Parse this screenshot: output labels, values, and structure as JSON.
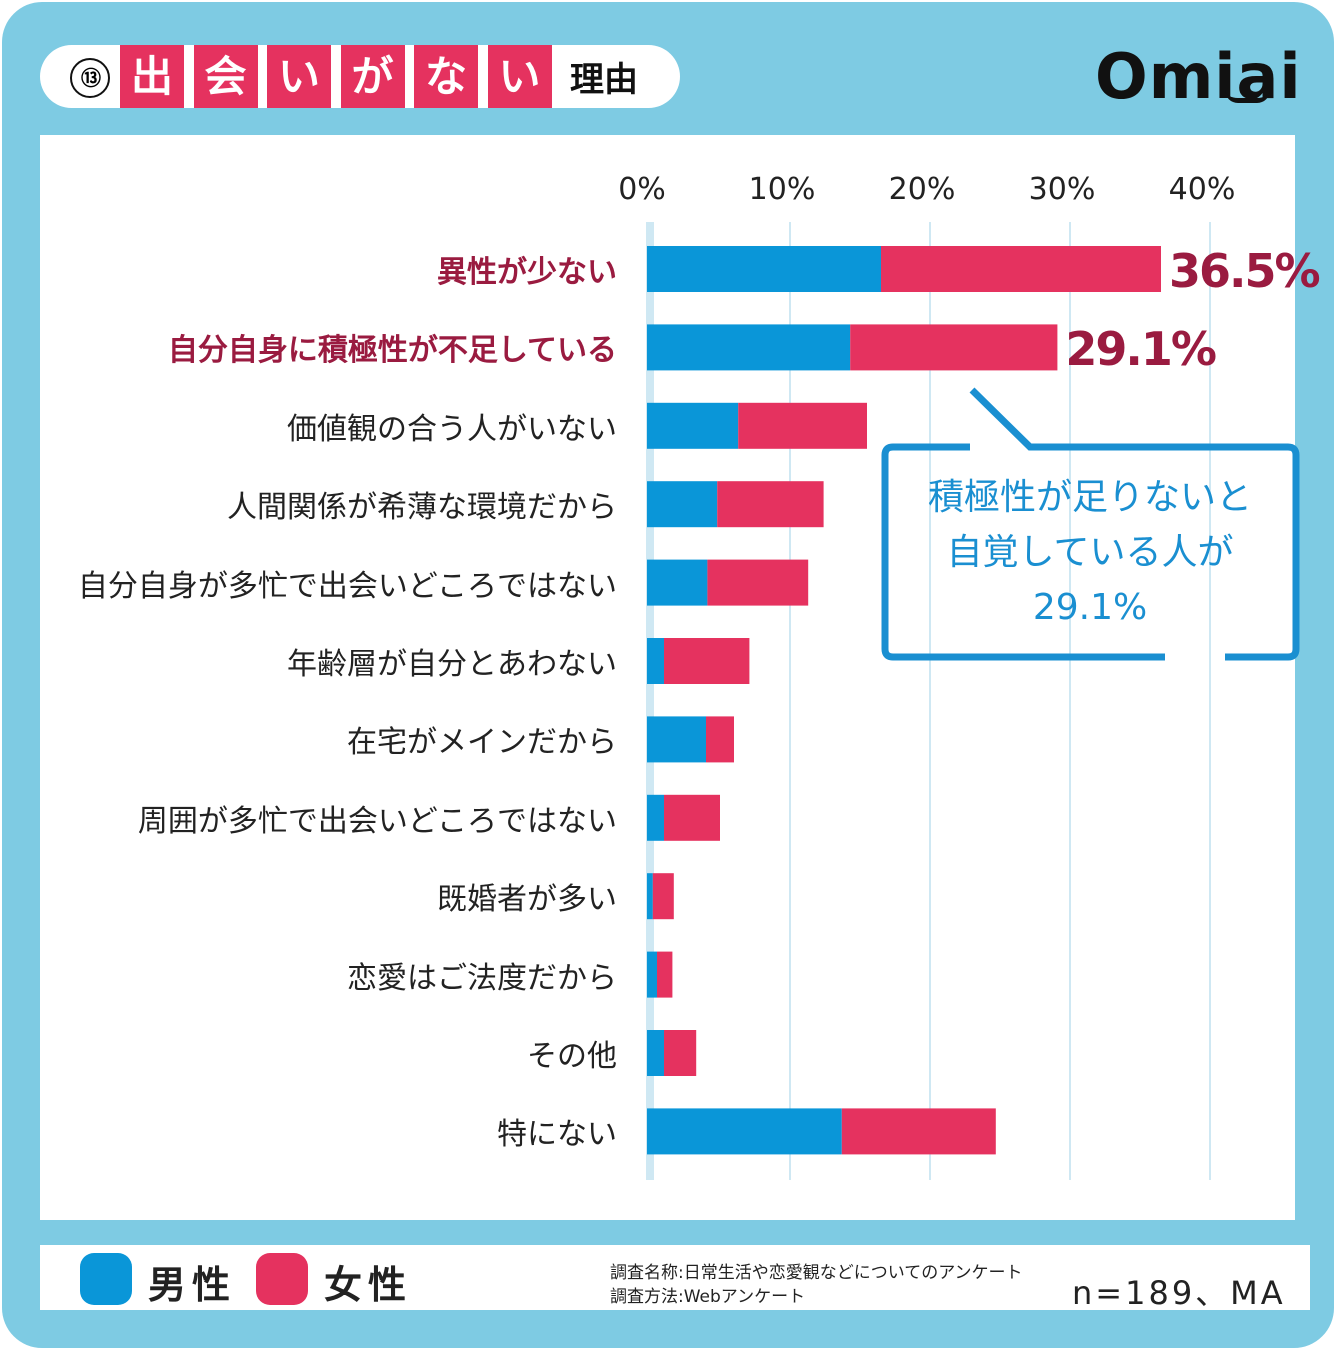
{
  "title": {
    "number": "⑬",
    "highlight_chars": [
      "出",
      "会",
      "い",
      "が",
      "な",
      "い"
    ],
    "suffix": "理由"
  },
  "logo": "Omiai",
  "colors": {
    "male": "#0a96d8",
    "female": "#e5325f",
    "highlight_label": "#9a1b40",
    "frame": "#7ecbe3",
    "callout": "#1a8fd1"
  },
  "chart_data": {
    "type": "bar",
    "orientation": "horizontal",
    "stacked": true,
    "categories": [
      "異性が少ない",
      "自分自身に積極性が不足している",
      "価値観の合う人がいない",
      "人間関係が希薄な環境だから",
      "自分自身が多忙で出会いどころではない",
      "年齢層が自分とあわない",
      "在宅がメインだから",
      "周囲が多忙で出会いどころではない",
      "既婚者が多い",
      "恋愛はご法度だから",
      "その他",
      "特にない"
    ],
    "highlighted": [
      0,
      1
    ],
    "series": [
      {
        "name": "男性",
        "values": [
          16.5,
          14.3,
          6.3,
          4.8,
          4.1,
          1.0,
          4.0,
          1.0,
          0.2,
          0.5,
          1.0,
          13.7
        ]
      },
      {
        "name": "女性",
        "values": [
          20.0,
          14.8,
          9.2,
          7.6,
          7.2,
          6.1,
          2.0,
          4.0,
          1.5,
          1.1,
          2.3,
          11.0
        ]
      }
    ],
    "data_labels": [
      "36.5%",
      "29.1%"
    ],
    "xticks": [
      "0%",
      "10%",
      "20%",
      "30%",
      "40%"
    ],
    "xlim": [
      0,
      45
    ],
    "grid": true,
    "legend_placement": "bottom-left"
  },
  "callout": {
    "lines": [
      "積極性が足りないと",
      "自覚している人が",
      "29.1%"
    ]
  },
  "legend": {
    "male": "男性",
    "female": "女性"
  },
  "footer": {
    "survey_name": "調査名称:日常生活や恋愛観などについてのアンケート",
    "survey_method": "調査方法:Webアンケート",
    "sample": "n=189、MA"
  }
}
